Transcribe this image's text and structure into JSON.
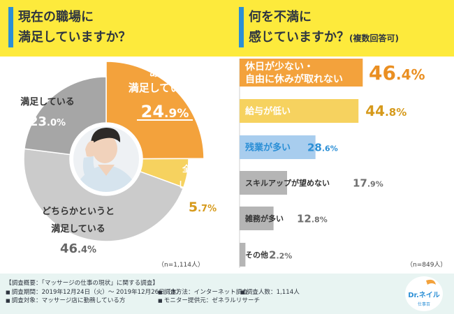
{
  "titles": {
    "left_line1": "現在の職場に",
    "left_line2": "満足していますか？",
    "right_line1": "何を不満に",
    "right_line2": "感じていますか？",
    "right_note": "(複数回答可)"
  },
  "colors": {
    "header_bg": "#fdea3c",
    "accent_blue": "#2b8fd6",
    "orange": "#f3a23c",
    "yellow": "#f6d25f",
    "blue_light": "#a8cdee",
    "gray_dark": "#9a9a9a",
    "gray_mid": "#b5b5b5",
    "gray_light": "#cbcbcb",
    "pct_orange": "#ea8f22",
    "pct_yellow": "#d69a1c",
    "pct_blue": "#2b8fd6",
    "pct_gray": "#707070"
  },
  "chart_data": [
    {
      "type": "pie",
      "donut": true,
      "unit": "%",
      "n_label": "（n=1,114人）",
      "slices": [
        {
          "label_lines": [
            "あまり",
            "満足していない"
          ],
          "value": 24.9,
          "value_text": "24.9%",
          "color": "#f3a23c"
        },
        {
          "label_lines": [
            "全く満足",
            "していない"
          ],
          "value": 5.7,
          "value_text": "5.7%",
          "color": "#f6d25f"
        },
        {
          "label_lines": [
            "どちらかというと",
            "満足している"
          ],
          "value": 46.4,
          "value_text": "46.4%",
          "color": "#cbcbcb"
        },
        {
          "label_lines": [
            "満足している"
          ],
          "value": 23.0,
          "value_text": "23.0%",
          "color": "#a6a6a6"
        }
      ]
    },
    {
      "type": "bar",
      "orientation": "horizontal",
      "unit": "%",
      "n_label": "（n=849人）",
      "xlim": [
        0,
        50
      ],
      "bars": [
        {
          "label_lines": [
            "休日が少ない・",
            "自由に休みが取れない"
          ],
          "value": 46.4,
          "value_text": "46.4%",
          "color": "#f3a23c",
          "text_color": "#ffffff",
          "value_color": "#ea8f22"
        },
        {
          "label_lines": [
            "給与が低い"
          ],
          "value": 44.8,
          "value_text": "44.8%",
          "color": "#f6d25f",
          "text_color": "#ffffff",
          "value_color": "#d69a1c"
        },
        {
          "label_lines": [
            "残業が多い"
          ],
          "value": 28.6,
          "value_text": "28.6%",
          "color": "#a8cdee",
          "text_color": "#2b8fd6",
          "value_color": "#2b8fd6"
        },
        {
          "label_lines": [
            "スキルアップが望めない"
          ],
          "value": 17.9,
          "value_text": "17.9%",
          "color": "#b5b5b5",
          "text_color": "#333333",
          "value_color": "#707070"
        },
        {
          "label_lines": [
            "雑務が多い"
          ],
          "value": 12.8,
          "value_text": "12.8%",
          "color": "#b5b5b5",
          "text_color": "#333333",
          "value_color": "#707070"
        },
        {
          "label_lines": [
            "その他"
          ],
          "value": 2.2,
          "value_text": "2.2%",
          "color": "#b5b5b5",
          "text_color": "#333333",
          "value_color": "#707070"
        }
      ]
    }
  ],
  "footer": {
    "survey_title": "【調査概要：「マッサージの仕事の現状」に関する調査】",
    "period": "調査期間：2019年12月24日（火）～ 2019年12月26日（木）",
    "method": "調査方法：インターネット調査",
    "count": "調査人数：1,114人",
    "target": "調査対象：マッサージ店に勤務している方",
    "provider": "モニター提供元：ゼネラルリサーチ",
    "bullet": "■"
  },
  "logo": {
    "main": "Dr.ネイル",
    "sub": "仕事百"
  }
}
